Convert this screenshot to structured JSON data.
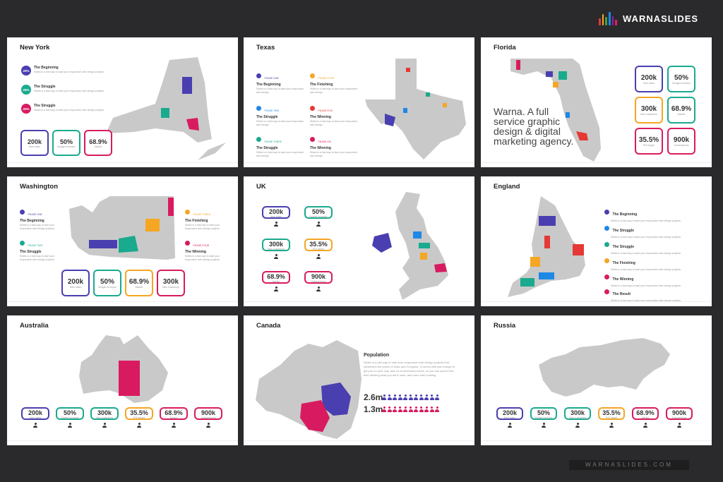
{
  "brand": {
    "name": "WARNASLIDES",
    "logo_colors": [
      "#e53935",
      "#f9a825",
      "#43a047",
      "#1e88e5",
      "#8e24aa",
      "#e91e63"
    ]
  },
  "colors": {
    "purple": "#4a3fb0",
    "teal": "#1aaa8e",
    "pink": "#d81b60",
    "orange": "#f5a623",
    "red": "#e53935"
  },
  "slides": {
    "new_york": {
      "title": "New York",
      "items": [
        {
          "pct": "20%",
          "title": "The Beginning"
        },
        {
          "pct": "25%",
          "title": "The Struggle"
        },
        {
          "pct": "20%",
          "title": "The Struggle"
        }
      ],
      "stats": [
        "200k",
        "50%",
        "68.9%"
      ]
    },
    "texas": {
      "title": "Texas",
      "phases": [
        {
          "tag": "PHASE ONE",
          "title": "The Beginning"
        },
        {
          "tag": "PHASE FOUR",
          "title": "The Finishing"
        },
        {
          "tag": "PHASE TWO",
          "title": "The Struggle"
        },
        {
          "tag": "PHASE FIVE",
          "title": "The Winning"
        },
        {
          "tag": "PHASE THREE",
          "title": "The Struggle"
        },
        {
          "tag": "PHASE SIX",
          "title": "The Winning"
        }
      ]
    },
    "florida": {
      "title": "Florida",
      "tagline": "Warna. A full service graphic design & digital marketing agency.",
      "stats": [
        "200k",
        "50%",
        "300k",
        "68.9%",
        "35.5%",
        "900k"
      ]
    },
    "washington": {
      "title": "Washington",
      "phases": [
        {
          "tag": "PHASE ONE",
          "title": "The Beginning"
        },
        {
          "tag": "PHASE THREE",
          "title": "The Finishing"
        },
        {
          "tag": "PHASE TWO",
          "title": "The Struggle"
        },
        {
          "tag": "PHASE FOUR",
          "title": "The Winning"
        }
      ],
      "stats": [
        "200k",
        "50%",
        "68.9%",
        "300k"
      ]
    },
    "uk": {
      "title": "UK",
      "stats": [
        "200k",
        "50%",
        "300k",
        "35.5%",
        "68.9%",
        "900k"
      ]
    },
    "england": {
      "title": "England",
      "items": [
        "The Beginning",
        "The Struggle",
        "The Struggle",
        "The Finishing",
        "The Winning",
        "The Result"
      ]
    },
    "australia": {
      "title": "Australia",
      "stats": [
        "200k",
        "50%",
        "300k",
        "35.5%",
        "68.9%",
        "900k"
      ]
    },
    "canada": {
      "title": "Canada",
      "population_title": "Population",
      "population_text": "Slides is a fast way to start your responsive web design projects that harnesses the power of Sass and Compass. It comes with just enough to get you on your way, and no unnecessary extras, so you can spend less time deleting what you don't need, and more time building.",
      "rows": [
        {
          "value": "2.6m",
          "color": "#4a3fb0"
        },
        {
          "value": "1.3m",
          "color": "#d81b60"
        }
      ]
    },
    "russia": {
      "title": "Russia",
      "stats": [
        "200k",
        "50%",
        "300k",
        "35.5%",
        "68.9%",
        "900k"
      ]
    }
  },
  "footer_site": "WARNASLIDES.COM"
}
